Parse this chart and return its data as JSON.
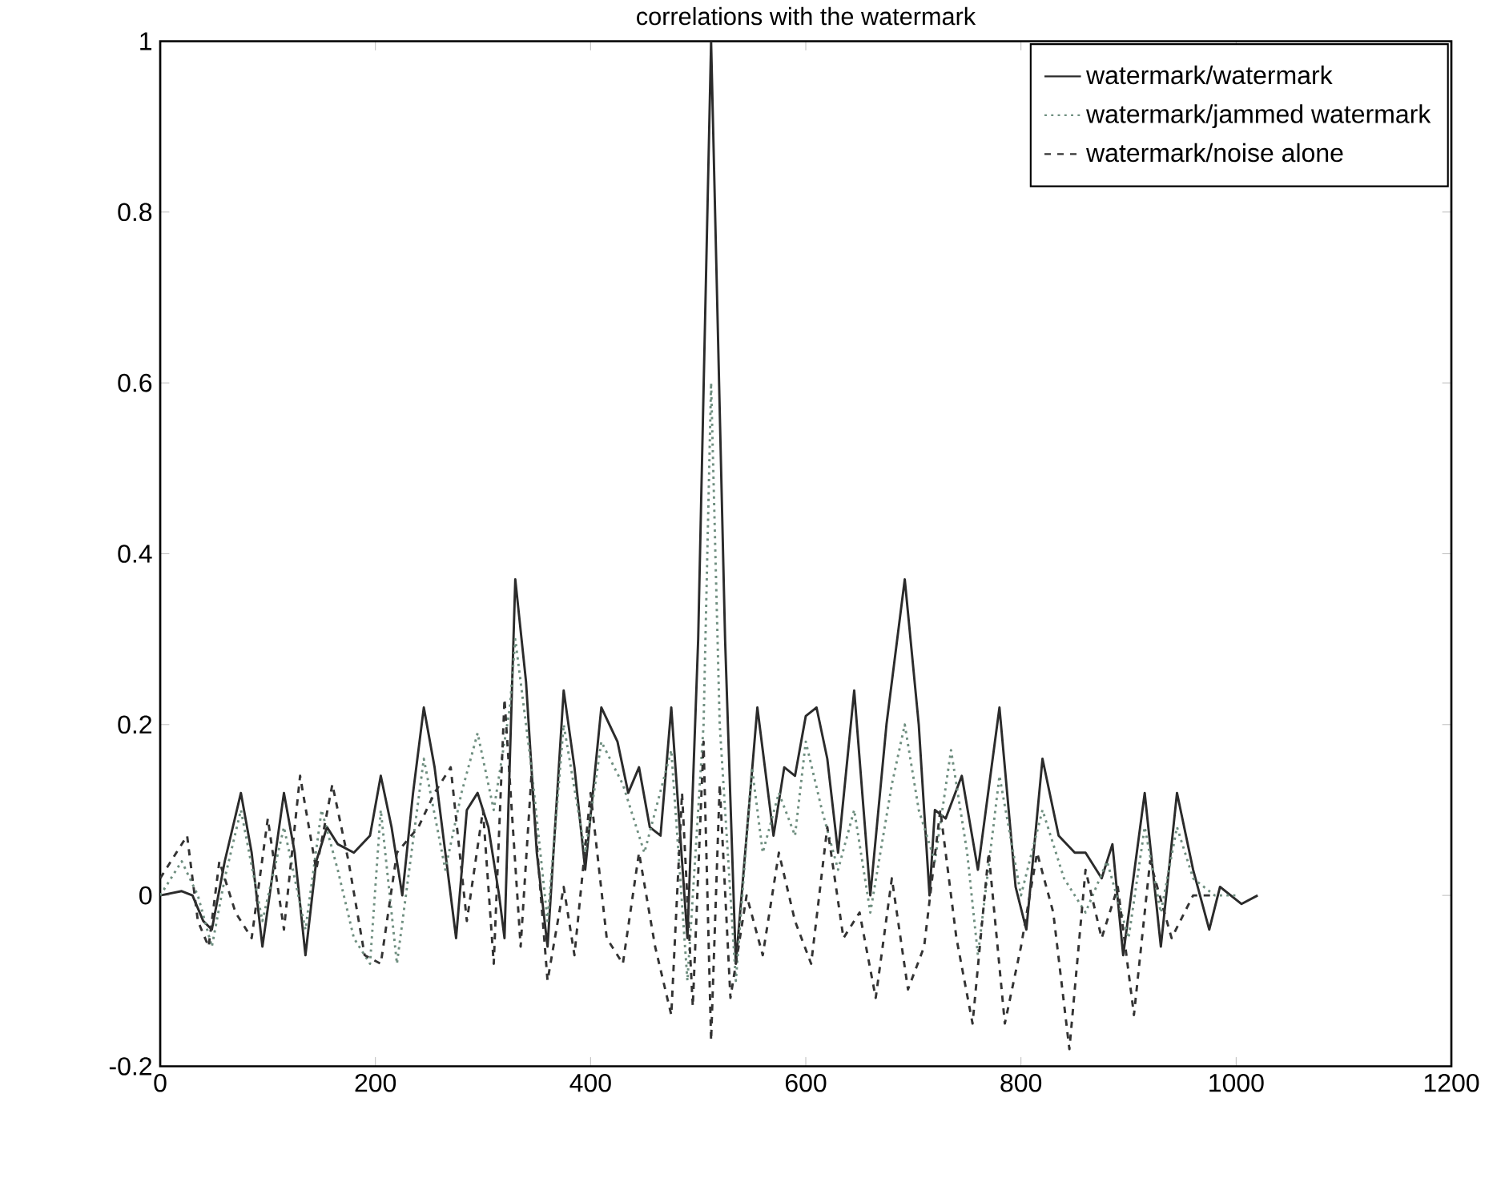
{
  "chart_data": {
    "type": "line",
    "title": "correlations with the watermark",
    "xlim": [
      0,
      1200
    ],
    "ylim": [
      -0.2,
      1
    ],
    "xticks": [
      0,
      200,
      400,
      600,
      800,
      1000,
      1200
    ],
    "yticks": [
      -0.2,
      0,
      0.2,
      0.4,
      0.6,
      0.8,
      1
    ],
    "legend": "top right",
    "grid": false,
    "series": [
      {
        "name": "watermark/watermark",
        "color": "#2b2b2b",
        "line_style": "solid",
        "x": [
          0,
          20,
          30,
          40,
          48,
          60,
          75,
          85,
          95,
          105,
          115,
          125,
          135,
          145,
          155,
          165,
          180,
          195,
          205,
          215,
          225,
          235,
          245,
          255,
          265,
          275,
          285,
          295,
          305,
          315,
          320,
          330,
          340,
          350,
          360,
          375,
          385,
          395,
          410,
          425,
          435,
          445,
          455,
          465,
          475,
          490,
          500,
          512,
          525,
          535,
          555,
          570,
          580,
          590,
          600,
          610,
          620,
          630,
          645,
          660,
          675,
          692,
          705,
          715,
          720,
          730,
          745,
          760,
          780,
          795,
          805,
          820,
          835,
          850,
          860,
          875,
          885,
          895,
          915,
          930,
          945,
          960,
          975,
          985,
          995,
          1005,
          1020
        ],
        "values": [
          0,
          0.005,
          0,
          -0.03,
          -0.04,
          0.04,
          0.12,
          0.05,
          -0.06,
          0.03,
          0.12,
          0.05,
          -0.07,
          0.04,
          0.08,
          0.06,
          0.05,
          0.07,
          0.14,
          0.08,
          0.0,
          0.12,
          0.22,
          0.15,
          0.05,
          -0.05,
          0.1,
          0.12,
          0.08,
          0.0,
          -0.05,
          0.37,
          0.25,
          0.05,
          -0.06,
          0.24,
          0.15,
          0.03,
          0.22,
          0.18,
          0.12,
          0.15,
          0.08,
          0.07,
          0.22,
          -0.05,
          0.3,
          1.0,
          0.3,
          -0.08,
          0.22,
          0.07,
          0.15,
          0.14,
          0.21,
          0.22,
          0.16,
          0.05,
          0.24,
          0.0,
          0.2,
          0.37,
          0.2,
          0.0,
          0.1,
          0.09,
          0.14,
          0.03,
          0.22,
          0.01,
          -0.04,
          0.16,
          0.07,
          0.05,
          0.05,
          0.02,
          0.06,
          -0.07,
          0.12,
          -0.06,
          0.12,
          0.03,
          -0.04,
          0.01,
          0.0,
          -0.01,
          0.0
        ]
      },
      {
        "name": "watermark/jammed watermark",
        "color": "#6f8f80",
        "line_style": "dotted",
        "x": [
          0,
          20,
          35,
          48,
          60,
          75,
          95,
          115,
          135,
          150,
          165,
          180,
          195,
          205,
          220,
          245,
          265,
          280,
          295,
          310,
          325,
          330,
          345,
          360,
          375,
          395,
          410,
          430,
          450,
          475,
          490,
          505,
          512,
          520,
          535,
          550,
          560,
          575,
          590,
          600,
          615,
          630,
          645,
          660,
          680,
          692,
          705,
          720,
          735,
          750,
          760,
          780,
          800,
          820,
          840,
          860,
          880,
          900,
          915,
          930,
          945,
          960,
          980,
          1000
        ],
        "values": [
          0,
          0.04,
          0.0,
          -0.06,
          0.02,
          0.1,
          -0.03,
          0.08,
          -0.04,
          0.1,
          0.03,
          -0.05,
          -0.08,
          0.1,
          -0.08,
          0.16,
          0.03,
          0.12,
          0.19,
          0.1,
          0.22,
          0.3,
          0.15,
          -0.03,
          0.2,
          0.05,
          0.18,
          0.13,
          0.05,
          0.17,
          -0.1,
          0.2,
          0.6,
          0.2,
          -0.1,
          0.15,
          0.05,
          0.12,
          0.07,
          0.18,
          0.1,
          0.03,
          0.1,
          -0.02,
          0.13,
          0.2,
          0.1,
          0.04,
          0.17,
          0.05,
          -0.07,
          0.14,
          0.0,
          0.1,
          0.02,
          -0.02,
          0.04,
          -0.05,
          0.08,
          -0.02,
          0.08,
          0.02,
          0.0,
          0.0
        ]
      },
      {
        "name": "watermark/noise alone",
        "color": "#333333",
        "line_style": "dashed",
        "x": [
          0,
          15,
          25,
          35,
          45,
          55,
          70,
          85,
          100,
          115,
          130,
          145,
          160,
          175,
          190,
          205,
          220,
          240,
          255,
          270,
          285,
          300,
          310,
          320,
          335,
          345,
          360,
          375,
          385,
          400,
          415,
          430,
          445,
          460,
          475,
          485,
          495,
          505,
          512,
          520,
          530,
          545,
          560,
          575,
          590,
          605,
          620,
          635,
          650,
          665,
          680,
          695,
          710,
          725,
          740,
          755,
          770,
          785,
          800,
          815,
          830,
          845,
          860,
          875,
          890,
          905,
          920,
          940,
          960,
          980
        ],
        "values": [
          0.02,
          0.05,
          0.07,
          -0.03,
          -0.06,
          0.04,
          -0.02,
          -0.05,
          0.09,
          -0.04,
          0.14,
          0.03,
          0.13,
          0.04,
          -0.07,
          -0.08,
          0.05,
          0.08,
          0.12,
          0.15,
          -0.03,
          0.1,
          -0.08,
          0.23,
          -0.06,
          0.14,
          -0.1,
          0.01,
          -0.07,
          0.12,
          -0.05,
          -0.08,
          0.05,
          -0.06,
          -0.14,
          0.12,
          -0.13,
          0.18,
          -0.17,
          0.13,
          -0.12,
          0.0,
          -0.07,
          0.05,
          -0.03,
          -0.08,
          0.08,
          -0.05,
          -0.02,
          -0.12,
          0.02,
          -0.11,
          -0.06,
          0.1,
          -0.05,
          -0.15,
          0.05,
          -0.15,
          -0.06,
          0.05,
          -0.02,
          -0.18,
          0.03,
          -0.05,
          0.01,
          -0.14,
          0.04,
          -0.05,
          0.0,
          0.0
        ]
      }
    ]
  }
}
